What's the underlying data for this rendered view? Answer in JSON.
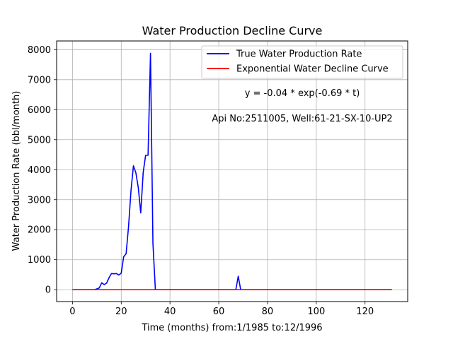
{
  "chart_data": {
    "type": "line",
    "title": "Water Production Decline Curve",
    "xlabel": "Time (months) from:1/1985 to:12/1996",
    "ylabel": "Water Production Rate (bbl/month)",
    "xlim": [
      -6.5,
      137.5
    ],
    "ylim": [
      -395,
      8290
    ],
    "xticks": [
      0,
      20,
      40,
      60,
      80,
      100,
      120
    ],
    "yticks": [
      0,
      1000,
      2000,
      3000,
      4000,
      5000,
      6000,
      7000,
      8000
    ],
    "grid": true,
    "legend_position": "top-right",
    "annotations": [
      "y = -0.04 * exp(-0.69 * t)",
      "Api No:2511005, Well:61-21-SX-10-UP2"
    ],
    "series": [
      {
        "name": "True Water Production Rate",
        "color": "#0000ff",
        "x": [
          0,
          9,
          10,
          11,
          12,
          13,
          14,
          15,
          16,
          17,
          18,
          19,
          20,
          21,
          22,
          23,
          24,
          25,
          26,
          27,
          28,
          29,
          30,
          31,
          32,
          33,
          34,
          67,
          68,
          69,
          131
        ],
        "y": [
          0,
          0,
          30,
          60,
          230,
          170,
          220,
          400,
          540,
          530,
          540,
          490,
          550,
          1100,
          1200,
          2100,
          3300,
          4130,
          3900,
          3400,
          2560,
          3900,
          4480,
          4480,
          7880,
          1550,
          0,
          0,
          450,
          0,
          0
        ]
      },
      {
        "name": "Exponential Water Decline Curve",
        "color": "#ff0000",
        "x": [
          0,
          131
        ],
        "y": [
          0,
          0
        ]
      }
    ]
  }
}
